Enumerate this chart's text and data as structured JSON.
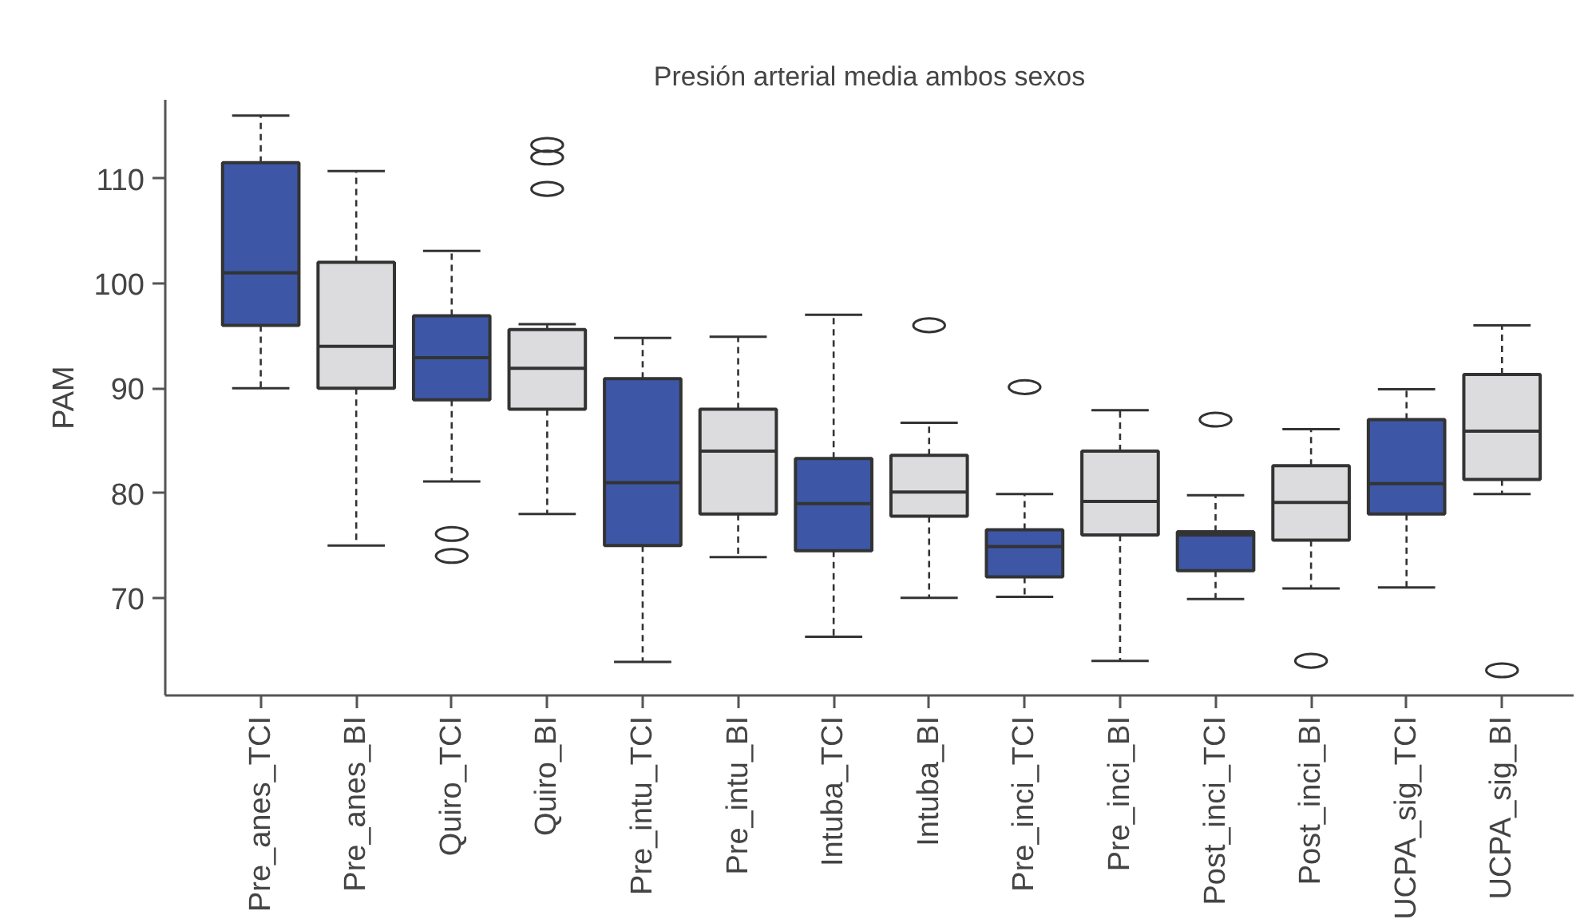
{
  "chart_data": {
    "type": "box",
    "title": "Presión arterial media ambos sexos",
    "ylabel": "PAM",
    "categories": [
      "Pre_anes_TCI",
      "Pre_anes_BI",
      "Quiro_TCI",
      "Quiro_BI",
      "Pre_intu_TCI",
      "Pre_intu_BI",
      "Intuba_TCI",
      "Intuba_BI",
      "Pre_inci_TCI",
      "Pre_inci_BI",
      "Post_inci_TCI",
      "Post_inci_BI",
      "UCPA_sig_TCI",
      "UCPA_sig_BI"
    ],
    "colors": [
      "#3d57a6",
      "#dcdcde",
      "#3d57a6",
      "#dcdcde",
      "#3d57a6",
      "#dcdcde",
      "#3d57a6",
      "#dcdcde",
      "#3d57a6",
      "#dcdcde",
      "#3d57a6",
      "#dcdcde",
      "#3d57a6",
      "#dcdcde"
    ],
    "boxes": [
      {
        "low": 90,
        "q1": 96,
        "median": 101,
        "q3": 111.5,
        "high": 116
      },
      {
        "low": 75,
        "q1": 90,
        "median": 94,
        "q3": 102,
        "high": 110.7
      },
      {
        "low": 81.1,
        "q1": 88.9,
        "median": 92.9,
        "q3": 96.9,
        "high": 103.1,
        "outliers": [
          76.1,
          74
        ]
      },
      {
        "low": 78,
        "q1": 88,
        "median": 91.9,
        "q3": 95.6,
        "high": 96.1,
        "outliers": [
          113.2,
          112,
          109
        ]
      },
      {
        "low": 63.9,
        "q1": 75,
        "median": 81,
        "q3": 90.9,
        "high": 94.8
      },
      {
        "low": 73.9,
        "q1": 78,
        "median": 84,
        "q3": 88,
        "high": 94.9
      },
      {
        "low": 66.3,
        "q1": 74.5,
        "median": 79,
        "q3": 83.3,
        "high": 97
      },
      {
        "low": 70,
        "q1": 77.8,
        "median": 80.1,
        "q3": 83.6,
        "high": 86.7,
        "outliers": [
          96
        ]
      },
      {
        "low": 70.1,
        "q1": 72,
        "median": 74.9,
        "q3": 76.5,
        "high": 79.9,
        "outliers": [
          90.1
        ]
      },
      {
        "low": 64,
        "q1": 76,
        "median": 79.2,
        "q3": 84,
        "high": 87.9
      },
      {
        "low": 69.9,
        "q1": 72.6,
        "median": 76,
        "q3": 76.3,
        "high": 79.8,
        "outliers": [
          87
        ]
      },
      {
        "low": 70.9,
        "q1": 75.5,
        "median": 79.1,
        "q3": 82.6,
        "high": 86.1,
        "outliers": [
          64
        ]
      },
      {
        "low": 71,
        "q1": 78,
        "median": 80.9,
        "q3": 87,
        "high": 89.9
      },
      {
        "low": 79.9,
        "q1": 81.3,
        "median": 85.9,
        "q3": 91.3,
        "high": 96,
        "outliers": [
          63.1
        ]
      }
    ],
    "ylim": [
      60.7,
      117.5
    ],
    "yticks": [
      70,
      80,
      90,
      100,
      110
    ]
  }
}
